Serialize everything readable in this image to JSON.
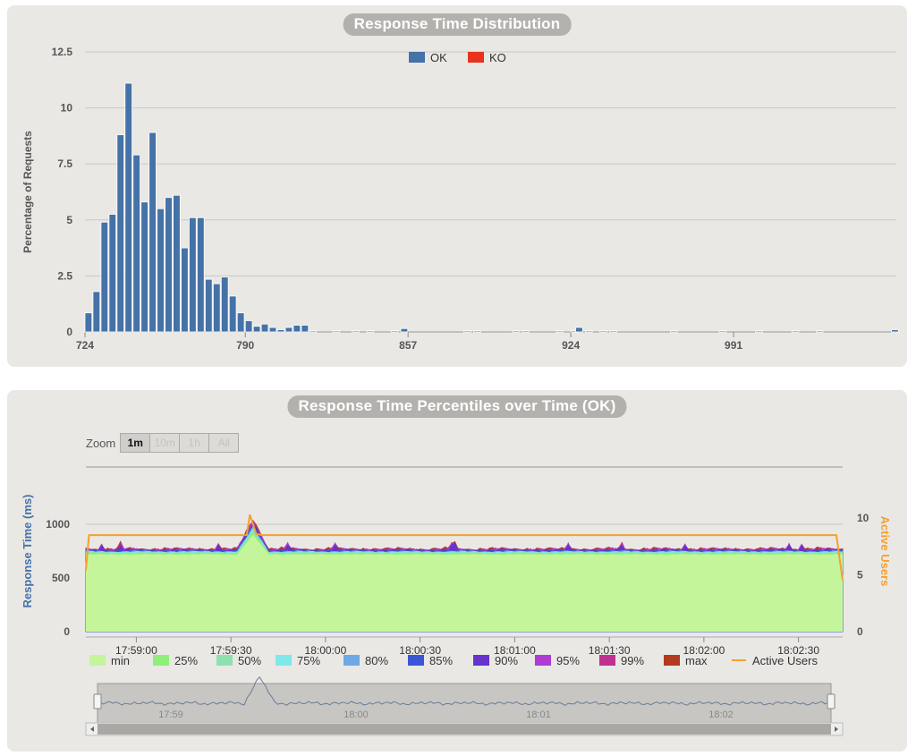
{
  "distribution": {
    "title": "Response Time Distribution",
    "legend": [
      {
        "label": "OK",
        "color": "#4572a7"
      },
      {
        "label": "KO",
        "color": "#e8321e"
      }
    ],
    "ylabel": "Percentage of Requests",
    "yticks": [
      "12.5",
      "10",
      "7.5",
      "5",
      "2.5",
      "0"
    ],
    "xticks": [
      "724",
      "790",
      "857",
      "924",
      "991"
    ]
  },
  "percentiles": {
    "title": "Response Time Percentiles over Time (OK)",
    "zoom": {
      "label": "Zoom",
      "buttons": [
        "1m",
        "10m",
        "1h",
        "All"
      ],
      "active": "1m"
    },
    "left_axis_label": "Response Time (ms)",
    "right_axis_label": "Active Users",
    "left_ticks": [
      "1000",
      "500",
      "0"
    ],
    "right_ticks": [
      "10",
      "5",
      "0"
    ],
    "xticks": [
      "17:59:00",
      "17:59:30",
      "18:00:00",
      "18:00:30",
      "18:01:00",
      "18:01:30",
      "18:02:00",
      "18:02:30"
    ],
    "legend": [
      {
        "label": "min",
        "color": "#c5f59a"
      },
      {
        "label": "25%",
        "color": "#8ef07a"
      },
      {
        "label": "50%",
        "color": "#8ee2b0"
      },
      {
        "label": "75%",
        "color": "#7fe8e8"
      },
      {
        "label": "80%",
        "color": "#6fa8e6"
      },
      {
        "label": "85%",
        "color": "#3b55d9"
      },
      {
        "label": "90%",
        "color": "#6633cc"
      },
      {
        "label": "95%",
        "color": "#b03ad6"
      },
      {
        "label": "99%",
        "color": "#c03090"
      },
      {
        "label": "max",
        "color": "#b23a1e"
      },
      {
        "label": "Active Users",
        "color": "#f6a02c"
      }
    ],
    "navigator_labels": [
      "17:59",
      "18:00",
      "18:01",
      "18:02"
    ]
  },
  "chart_data": [
    {
      "type": "bar",
      "title": "Response Time Distribution",
      "ylabel": "Percentage of Requests",
      "ylim": [
        0,
        12.5
      ],
      "xlim": [
        724,
        1058
      ],
      "grid": true,
      "legend_position": "top-center",
      "series": [
        {
          "name": "OK",
          "x": [
            724,
            727.3,
            730.6,
            733.9,
            737.2,
            740.5,
            743.8,
            747.1,
            750.4,
            753.7,
            757,
            760.3,
            763.6,
            766.9,
            770.2,
            773.5,
            776.8,
            780.1,
            783.4,
            786.7,
            790,
            793.3,
            796.6,
            799.9,
            803.2,
            806.5,
            809.8,
            813.1,
            816.4,
            826,
            834,
            840,
            850,
            854,
            880,
            884,
            900,
            904,
            918,
            924,
            926,
            930,
            936,
            940,
            965,
            985,
            1000,
            1015,
            1025,
            1056
          ],
          "values": [
            0.85,
            1.8,
            4.9,
            5.25,
            8.8,
            11.1,
            7.9,
            5.8,
            8.9,
            5.5,
            6,
            6.1,
            3.75,
            5.1,
            5.1,
            2.35,
            2.15,
            2.45,
            1.6,
            0.85,
            0.5,
            0.25,
            0.35,
            0.2,
            0.1,
            0.2,
            0.3,
            0.3,
            0.05,
            0.05,
            0.05,
            0.05,
            0.05,
            0.15,
            0.05,
            0.05,
            0.05,
            0.05,
            0.05,
            0.05,
            0.2,
            0.05,
            0.05,
            0.05,
            0.05,
            0.05,
            0.05,
            0.05,
            0.05,
            0.1
          ]
        },
        {
          "name": "KO",
          "x": [],
          "values": []
        }
      ]
    },
    {
      "type": "area",
      "title": "Response Time Percentiles over Time (OK)",
      "ylabel": "Response Time (ms)",
      "y2label": "Active Users",
      "ylim": [
        0,
        1000
      ],
      "y2lim": [
        0,
        10
      ],
      "xlim": [
        "17:58:44",
        "18:02:44"
      ],
      "baseline_ms": {
        "min": 720,
        "25%": 730,
        "50%": 738,
        "75%": 745,
        "80%": 748,
        "85%": 752,
        "90%": 757,
        "95%": 760,
        "99%": 764,
        "max": 768
      },
      "spike": {
        "time": "17:59:37",
        "max_ms": 1050
      },
      "active_users": {
        "times": [
          "17:58:44",
          "17:58:45",
          "17:59:35",
          "17:59:36",
          "17:59:38",
          "17:59:40",
          "18:02:42",
          "18:02:44"
        ],
        "values": [
          5.4,
          8.5,
          8.5,
          10.3,
          8.6,
          8.5,
          8.5,
          4.5
        ]
      }
    }
  ]
}
